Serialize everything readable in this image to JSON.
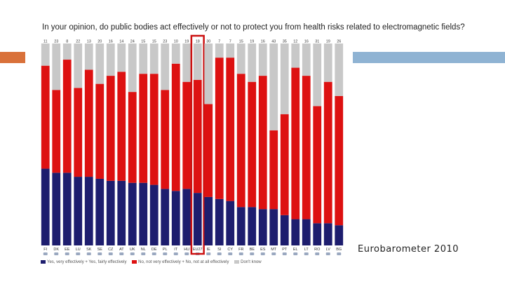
{
  "title": "In your opinion, do public bodies act effectively or not to protect you from health risks related to electromagnetic fields?",
  "source": "Eurobarometer 2010",
  "chart_data": {
    "type": "bar",
    "stacked": true,
    "title": "In your opinion, do public bodies act effectively or not to protect you from health risks related to electromagnetic fields?",
    "categories": [
      "FI",
      "DK",
      "EE",
      "LU",
      "SK",
      "SE",
      "CZ",
      "AT",
      "UK",
      "NL",
      "DE",
      "PL",
      "IT",
      "HU",
      "EU27",
      "IE",
      "SI",
      "CY",
      "FR",
      "BE",
      "ES",
      "MT",
      "PT",
      "EL",
      "LT",
      "RO",
      "LV",
      "BG"
    ],
    "highlight": "EU27",
    "ylim": [
      0,
      100
    ],
    "series": [
      {
        "name": "Yes, very effectively + Yes, fairly effectively",
        "color": "#1d1d6e",
        "values": [
          38,
          36,
          36,
          34,
          34,
          33,
          32,
          32,
          31,
          31,
          30,
          28,
          27,
          28,
          26,
          24,
          23,
          22,
          19,
          19,
          18,
          18,
          15,
          13,
          13,
          11,
          11,
          10
        ]
      },
      {
        "name": "No, not very effectively + No, not at all effectively",
        "color": "#dd1111",
        "values": [
          51,
          41,
          56,
          44,
          53,
          47,
          52,
          54,
          45,
          54,
          55,
          49,
          63,
          53,
          56,
          46,
          70,
          71,
          66,
          62,
          66,
          39,
          50,
          75,
          71,
          58,
          70,
          64
        ]
      },
      {
        "name": "Don't know",
        "color": "#c8c8c8",
        "values": [
          11,
          23,
          8,
          22,
          13,
          20,
          16,
          14,
          24,
          15,
          15,
          23,
          10,
          19,
          18,
          30,
          7,
          7,
          15,
          19,
          16,
          43,
          35,
          12,
          16,
          31,
          19,
          26
        ]
      }
    ],
    "legend": [
      "Yes, very effectively + Yes, fairly effectively",
      "No, not very effectively + No, not at all effectively",
      "Don't know"
    ]
  }
}
